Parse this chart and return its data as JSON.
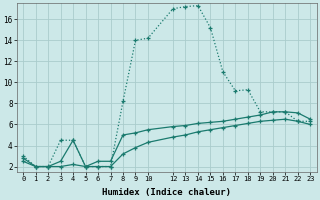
{
  "xlabel": "Humidex (Indice chaleur)",
  "background_color": "#cce8e8",
  "grid_color": "#aacccc",
  "line_color": "#1a7a6e",
  "xlim": [
    -0.5,
    23.5
  ],
  "ylim": [
    1.5,
    17.5
  ],
  "yticks": [
    2,
    4,
    6,
    8,
    10,
    12,
    14,
    16
  ],
  "xticks": [
    0,
    1,
    2,
    3,
    4,
    5,
    6,
    7,
    8,
    9,
    10,
    12,
    13,
    14,
    15,
    16,
    17,
    18,
    19,
    20,
    21,
    22,
    23
  ],
  "line1_x": [
    0,
    1,
    2,
    3,
    4,
    5,
    6,
    7,
    8,
    9,
    10,
    12,
    13,
    14,
    15,
    16,
    17,
    18,
    19,
    20,
    21,
    22,
    23
  ],
  "line1_y": [
    3.0,
    2.0,
    2.0,
    4.5,
    4.5,
    2.0,
    2.0,
    2.0,
    8.2,
    14.0,
    14.2,
    17.0,
    17.2,
    17.3,
    15.2,
    11.0,
    9.2,
    9.3,
    7.2,
    7.2,
    7.2,
    6.3,
    6.3
  ],
  "line2_x": [
    0,
    1,
    2,
    3,
    4,
    5,
    6,
    7,
    8,
    9,
    10,
    12,
    13,
    14,
    15,
    16,
    17,
    18,
    19,
    20,
    21,
    22,
    23
  ],
  "line2_y": [
    2.8,
    2.0,
    2.0,
    2.5,
    4.5,
    2.0,
    2.5,
    2.5,
    5.0,
    5.2,
    5.5,
    5.8,
    5.9,
    6.1,
    6.2,
    6.3,
    6.5,
    6.7,
    6.9,
    7.2,
    7.2,
    7.1,
    6.5
  ],
  "line3_x": [
    0,
    1,
    2,
    3,
    4,
    5,
    6,
    7,
    8,
    9,
    10,
    12,
    13,
    14,
    15,
    16,
    17,
    18,
    19,
    20,
    21,
    22,
    23
  ],
  "line3_y": [
    2.5,
    2.0,
    2.0,
    2.0,
    2.2,
    2.0,
    2.0,
    2.0,
    3.2,
    3.8,
    4.3,
    4.8,
    5.0,
    5.3,
    5.5,
    5.7,
    5.9,
    6.1,
    6.3,
    6.4,
    6.5,
    6.3,
    6.0
  ]
}
